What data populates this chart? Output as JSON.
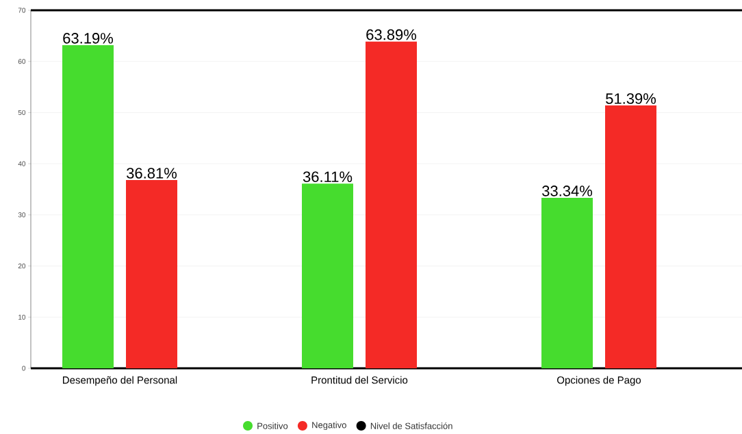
{
  "chart_data": {
    "type": "bar",
    "categories": [
      "Desempeño del Personal",
      "Prontitud del Servicio",
      "Opciones de Pago"
    ],
    "series": [
      {
        "name": "Positivo",
        "color": "#46dc2e",
        "values": [
          63.19,
          36.11,
          33.34
        ],
        "value_labels": [
          "63.19%",
          "36.11%",
          "33.34%"
        ]
      },
      {
        "name": "Negativo",
        "color": "#f42a26",
        "values": [
          36.81,
          63.89,
          51.39
        ],
        "value_labels": [
          "36.81%",
          "63.89%",
          "51.39%"
        ]
      },
      {
        "name": "Nivel de Satisfacción",
        "color": "#000000",
        "values": [
          null,
          null,
          null
        ]
      }
    ],
    "ylim": [
      0,
      70
    ],
    "yticks": [
      0,
      10,
      20,
      30,
      40,
      50,
      60,
      70
    ],
    "grid": "y",
    "legend": "bottom"
  }
}
